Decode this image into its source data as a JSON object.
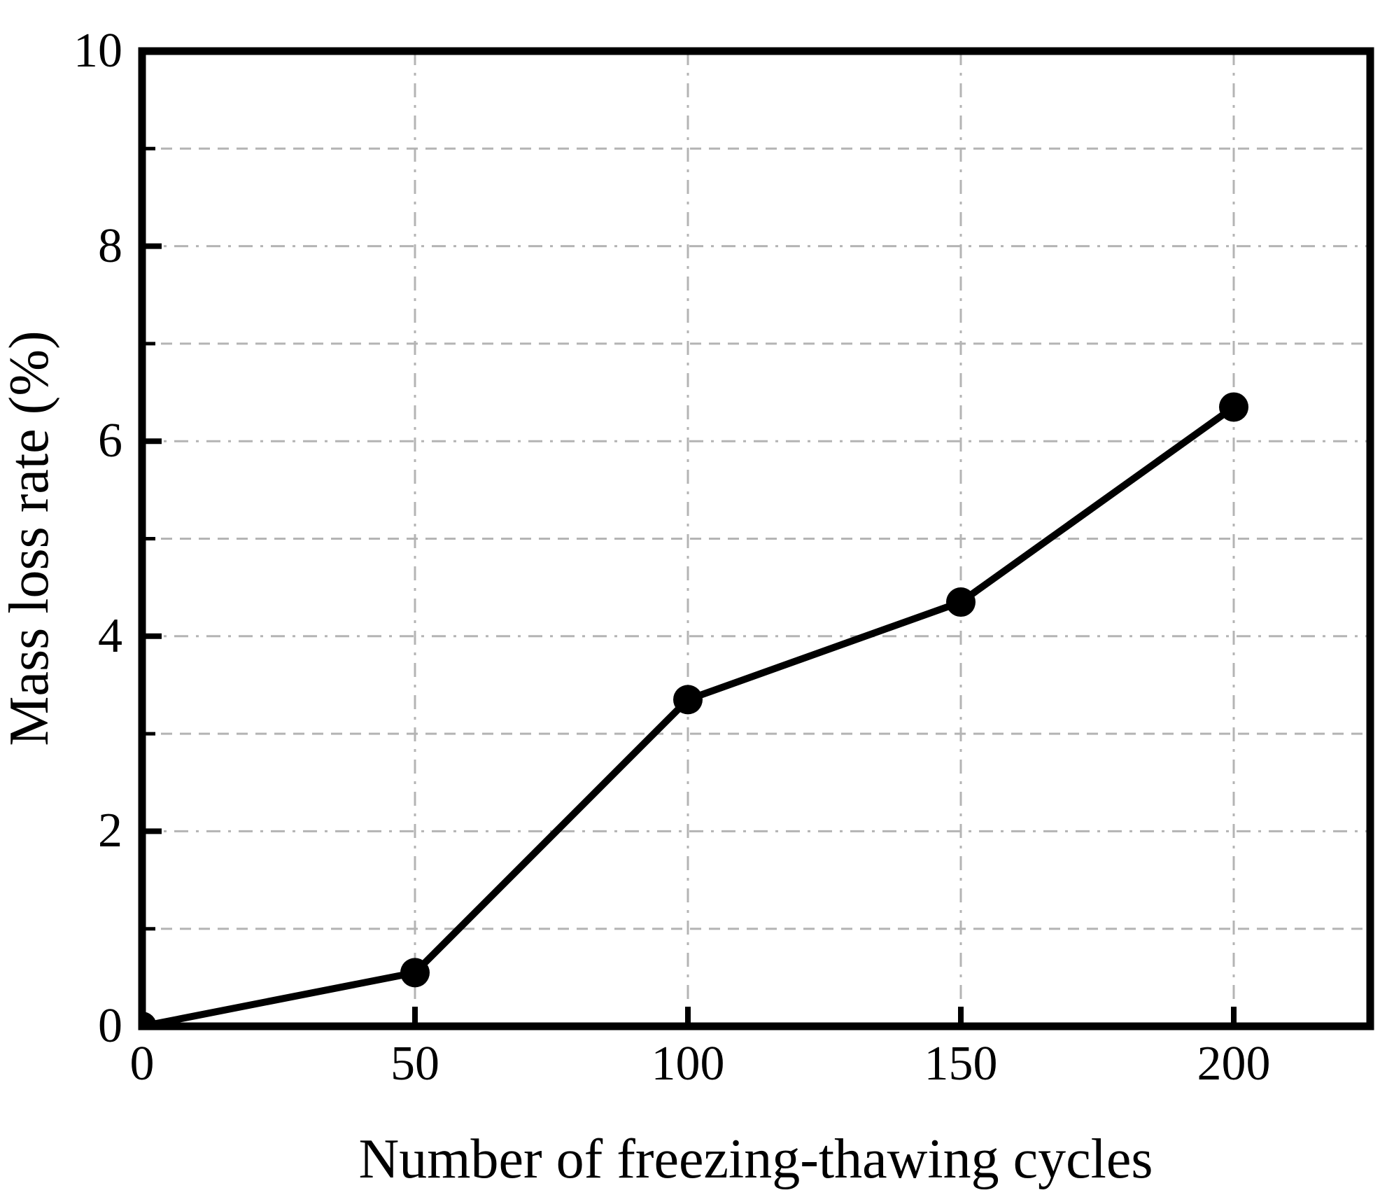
{
  "chart_data": {
    "type": "line",
    "title": "",
    "xlabel": "Number of freezing-thawing cycles",
    "ylabel": "Mass loss rate (%)",
    "x": [
      0,
      50,
      100,
      150,
      200
    ],
    "series": [
      {
        "name": "Mass loss rate",
        "values": [
          0,
          0.55,
          3.35,
          4.35,
          6.35
        ]
      }
    ],
    "xlim": [
      0,
      225
    ],
    "ylim": [
      0,
      10
    ],
    "x_major_ticks": [
      0,
      50,
      100,
      150,
      200
    ],
    "x_tick_labels": [
      "0",
      "50",
      "100",
      "150",
      "200"
    ],
    "y_major_ticks": [
      0,
      2,
      4,
      6,
      8,
      10
    ],
    "y_tick_labels": [
      "0",
      "2",
      "4",
      "6",
      "8",
      "10"
    ],
    "y_minor_ticks": [
      1,
      3,
      5,
      7,
      9
    ],
    "grid": {
      "on": true,
      "major_style": "dash-dot",
      "minor_style": "dashed",
      "color": "#b4b4b4"
    },
    "legend": {
      "shown": false
    },
    "line_color": "#000000",
    "marker_shape": "filled-circle",
    "axis_color": "#000000",
    "background": "#ffffff"
  }
}
